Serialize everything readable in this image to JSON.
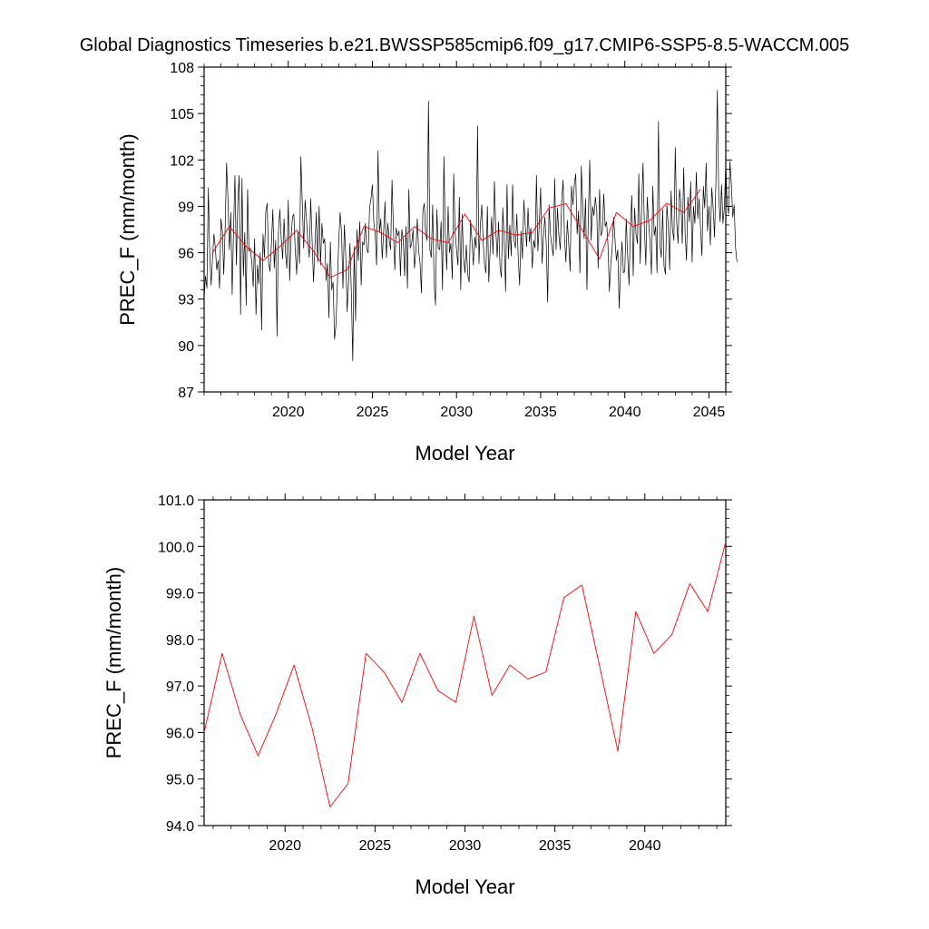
{
  "figure": {
    "title": "Global Diagnostics Timeseries b.e21.BWSSP585cmip6.f09_g17.CMIP6-SSP5-8.5-WACCM.005"
  },
  "colors": {
    "monthly_line": "#000000",
    "annual_line": "#ff0000",
    "axes": "#000000"
  },
  "chart_data": [
    {
      "type": "line",
      "title": "",
      "xlabel": "Model Year",
      "ylabel": "PREC_F (mm/month)",
      "xlim": [
        2015,
        2046
      ],
      "ylim": [
        87,
        108
      ],
      "xticks": [
        2020,
        2025,
        2030,
        2035,
        2040,
        2045
      ],
      "xtick_labels": [
        "2020",
        "2025",
        "2030",
        "2035",
        "2040",
        "2045"
      ],
      "yticks": [
        87,
        90,
        93,
        96,
        99,
        102,
        105,
        108
      ],
      "ytick_labels": [
        "87",
        "90",
        "93",
        "96",
        "99",
        "102",
        "105",
        "108"
      ],
      "grid": false,
      "legend": "none",
      "series": [
        {
          "color": "#000000",
          "monthly_start": 2015.0,
          "step": 0.08333,
          "values": [
            93.1,
            94.5,
            93.7,
            100.2,
            96.0,
            93.9,
            95.7,
            97.2,
            96.3,
            94.9,
            95.5,
            93.7,
            98.2,
            97.4,
            94.6,
            97.6,
            101.8,
            99.5,
            96.2,
            98.6,
            93.3,
            97.6,
            101.0,
            95.2,
            99.2,
            101.0,
            92.0,
            100.8,
            94.5,
            97.3,
            92.6,
            100.1,
            96.1,
            96.3,
            95.4,
            93.8,
            96.9,
            92.0,
            95.2,
            94.0,
            96.0,
            91.0,
            97.2,
            95.7,
            98.7,
            99.2,
            95.3,
            94.8,
            96.6,
            98.8,
            95.0,
            96.8,
            90.6,
            97.3,
            98.8,
            96.9,
            95.6,
            98.2,
            96.0,
            95.0,
            99.4,
            94.2,
            97.0,
            98.3,
            98.5,
            96.1,
            94.6,
            97.4,
            95.3,
            102.2,
            99.2,
            96.3,
            99.4,
            98.2,
            96.7,
            95.7,
            99.5,
            96.8,
            94.1,
            96.4,
            98.6,
            95.4,
            99.0,
            95.2,
            97.9,
            96.6,
            96.9,
            94.2,
            95.3,
            91.8,
            96.7,
            93.6,
            94.1,
            90.4,
            91.3,
            93.9,
            96.8,
            98.6,
            97.3,
            93.7,
            97.8,
            95.8,
            92.2,
            94.1,
            96.6,
            93.4,
            89.0,
            96.4,
            91.6,
            97.5,
            95.5,
            98.0,
            93.9,
            96.7,
            96.5,
            97.9,
            96.2,
            96.0,
            98.9,
            99.5,
            100.4,
            98.0,
            97.2,
            95.2,
            102.6,
            97.3,
            98.2,
            95.6,
            97.3,
            99.3,
            95.7,
            97.9,
            96.8,
            96.2,
            100.7,
            97.5,
            94.9,
            97.6,
            97.1,
            97.4,
            94.5,
            97.5,
            96.8,
            94.5,
            97.7,
            93.7,
            100.1,
            96.3,
            96.6,
            97.5,
            95.0,
            96.1,
            98.2,
            96.1,
            95.3,
            93.4,
            98.7,
            99.2,
            97.2,
            96.8,
            105.8,
            96.2,
            95.7,
            99.1,
            94.1,
            92.6,
            98.8,
            96.3,
            96.2,
            98.0,
            93.6,
            102.2,
            97.2,
            94.9,
            99.0,
            96.0,
            96.6,
            94.3,
            101.1,
            97.3,
            96.2,
            95.2,
            99.6,
            93.6,
            98.5,
            95.7,
            94.7,
            96.5,
            94.6,
            94.1,
            98.1,
            96.8,
            95.2,
            97.0,
            96.3,
            104.2,
            95.3,
            97.8,
            99.1,
            96.7,
            95.2,
            94.7,
            99.0,
            94.1,
            96.2,
            98.3,
            95.9,
            100.6,
            97.5,
            95.7,
            98.0,
            95.1,
            94.4,
            98.9,
            96.7,
            93.5,
            100.4,
            95.6,
            97.8,
            95.8,
            100.4,
            96.8,
            96.3,
            98.5,
            95.7,
            93.9,
            97.4,
            95.6,
            99.4,
            97.8,
            96.4,
            98.9,
            96.7,
            97.6,
            95.0,
            96.8,
            96.3,
            101.0,
            96.1,
            97.8,
            100.2,
            95.3,
            97.1,
            98.3,
            96.5,
            92.8,
            99.1,
            97.2,
            96.4,
            95.8,
            100.8,
            96.2,
            98.9,
            97.1,
            96.2,
            99.3,
            100.7,
            97.0,
            95.4,
            98.1,
            96.6,
            94.8,
            100.3,
            99.1,
            100.4,
            101.1,
            97.2,
            98.7,
            94.7,
            101.6,
            99.0,
            96.9,
            99.5,
            93.6,
            98.3,
            102.0,
            96.8,
            99.0,
            98.4,
            99.6,
            98.7,
            95.0,
            100.1,
            97.1,
            97.4,
            99.8,
            97.7,
            98.0,
            96.5,
            93.5,
            95.2,
            96.3,
            98.3,
            96.9,
            95.5,
            96.2,
            92.4,
            95.1,
            96.7,
            94.7,
            94.8,
            98.2,
            95.9,
            93.9,
            97.5,
            99.7,
            94.5,
            98.9,
            97.2,
            96.6,
            101.1,
            95.3,
            99.0,
            101.8,
            97.5,
            95.2,
            99.6,
            98.0,
            96.7,
            94.6,
            100.3,
            97.1,
            97.7,
            94.7,
            104.5,
            96.6,
            95.7,
            98.8,
            95.1,
            94.6,
            99.1,
            97.8,
            94.9,
            100.0,
            97.5,
            96.8,
            102.8,
            98.0,
            96.6,
            100.1,
            99.2,
            96.6,
            101.5,
            97.3,
            95.5,
            99.6,
            98.0,
            100.6,
            95.4,
            99.0,
            97.9,
            101.2,
            98.2,
            99.5,
            97.6,
            95.8,
            100.3,
            98.9,
            101.8,
            97.4,
            99.0,
            96.5,
            100.2,
            98.9,
            97.0,
            100.7,
            106.5,
            99.6,
            98.0,
            100.4,
            97.9,
            98.9,
            101.8,
            99.2,
            98.5,
            101.9,
            100.4,
            98.3,
            99.1,
            96.3,
            95.4
          ]
        },
        {
          "color": "#ff0000",
          "x": [
            2015.5,
            2016.5,
            2017.5,
            2018.5,
            2019.5,
            2020.5,
            2021.5,
            2022.5,
            2023.5,
            2024.5,
            2025.5,
            2026.5,
            2027.5,
            2028.5,
            2029.5,
            2030.5,
            2031.5,
            2032.5,
            2033.5,
            2034.5,
            2035.5,
            2036.5,
            2037.5,
            2038.5,
            2039.5,
            2040.5,
            2041.5,
            2042.5,
            2043.5,
            2044.5
          ],
          "values": [
            96.0,
            97.7,
            96.4,
            95.5,
            96.4,
            97.45,
            96.1,
            94.4,
            94.9,
            97.7,
            97.3,
            96.65,
            97.7,
            96.9,
            96.65,
            98.5,
            96.8,
            97.45,
            97.15,
            97.3,
            98.9,
            99.17,
            97.4,
            95.6,
            98.6,
            97.7,
            98.1,
            99.2,
            98.6,
            100.1
          ]
        }
      ]
    },
    {
      "type": "line",
      "title": "",
      "xlabel": "Model Year",
      "ylabel": "PREC_F (mm/month)",
      "xlim": [
        2015.5,
        2044.5
      ],
      "ylim": [
        94.0,
        101.0
      ],
      "xticks": [
        2020,
        2025,
        2030,
        2035,
        2040
      ],
      "xtick_labels": [
        "2020",
        "2025",
        "2030",
        "2035",
        "2040"
      ],
      "yticks": [
        94.0,
        95.0,
        96.0,
        97.0,
        98.0,
        99.0,
        100.0,
        101.0
      ],
      "ytick_labels": [
        "94.0",
        "95.0",
        "96.0",
        "97.0",
        "98.0",
        "99.0",
        "100.0",
        "101.0"
      ],
      "grid": false,
      "legend": "none",
      "series": [
        {
          "color": "#ff0000",
          "x": [
            2015.5,
            2016.5,
            2017.5,
            2018.5,
            2019.5,
            2020.5,
            2021.5,
            2022.5,
            2023.5,
            2024.5,
            2025.5,
            2026.5,
            2027.5,
            2028.5,
            2029.5,
            2030.5,
            2031.5,
            2032.5,
            2033.5,
            2034.5,
            2035.5,
            2036.5,
            2037.5,
            2038.5,
            2039.5,
            2040.5,
            2041.5,
            2042.5,
            2043.5,
            2044.5
          ],
          "values": [
            96.0,
            97.7,
            96.4,
            95.5,
            96.4,
            97.45,
            96.1,
            94.4,
            94.9,
            97.7,
            97.3,
            96.65,
            97.7,
            96.9,
            96.65,
            98.5,
            96.8,
            97.45,
            97.15,
            97.3,
            98.9,
            99.17,
            97.4,
            95.6,
            98.6,
            97.7,
            98.1,
            99.2,
            98.6,
            100.1
          ]
        }
      ]
    }
  ]
}
